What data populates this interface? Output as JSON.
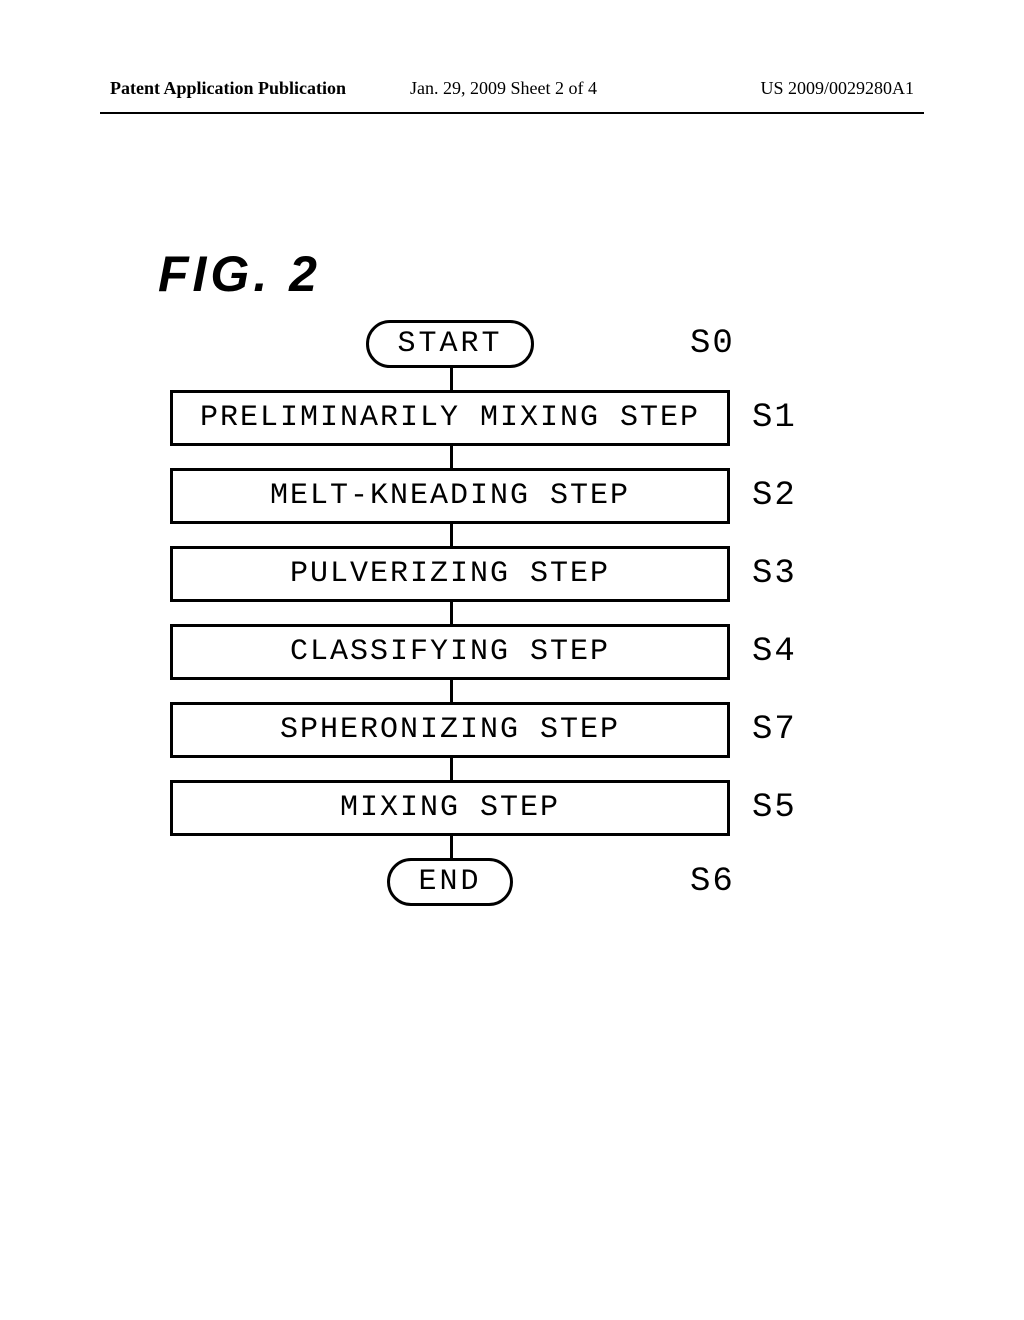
{
  "header": {
    "left": "Patent Application Publication",
    "center": "Jan. 29, 2009  Sheet 2 of 4",
    "right": "US 2009/0029280A1"
  },
  "figure_label": "FIG. 2",
  "flowchart": {
    "type": "flowchart",
    "background_color": "#ffffff",
    "stroke_color": "#000000",
    "stroke_width": 3,
    "font_family": "Courier New",
    "node_fontsize": 30,
    "label_fontsize": 34,
    "connector_height": 22,
    "process_width": 560,
    "nodes": [
      {
        "id": "S0",
        "shape": "terminal",
        "text": "START",
        "label": "S0"
      },
      {
        "id": "S1",
        "shape": "process",
        "text": "PRELIMINARILY MIXING STEP",
        "label": "S1"
      },
      {
        "id": "S2",
        "shape": "process",
        "text": "MELT-KNEADING STEP",
        "label": "S2"
      },
      {
        "id": "S3",
        "shape": "process",
        "text": "PULVERIZING STEP",
        "label": "S3"
      },
      {
        "id": "S4",
        "shape": "process",
        "text": "CLASSIFYING STEP",
        "label": "S4"
      },
      {
        "id": "S7",
        "shape": "process",
        "text": "SPHERONIZING STEP",
        "label": "S7"
      },
      {
        "id": "S5",
        "shape": "process",
        "text": "MIXING STEP",
        "label": "S5"
      },
      {
        "id": "S6",
        "shape": "terminal",
        "text": "END",
        "label": "S6"
      }
    ]
  }
}
